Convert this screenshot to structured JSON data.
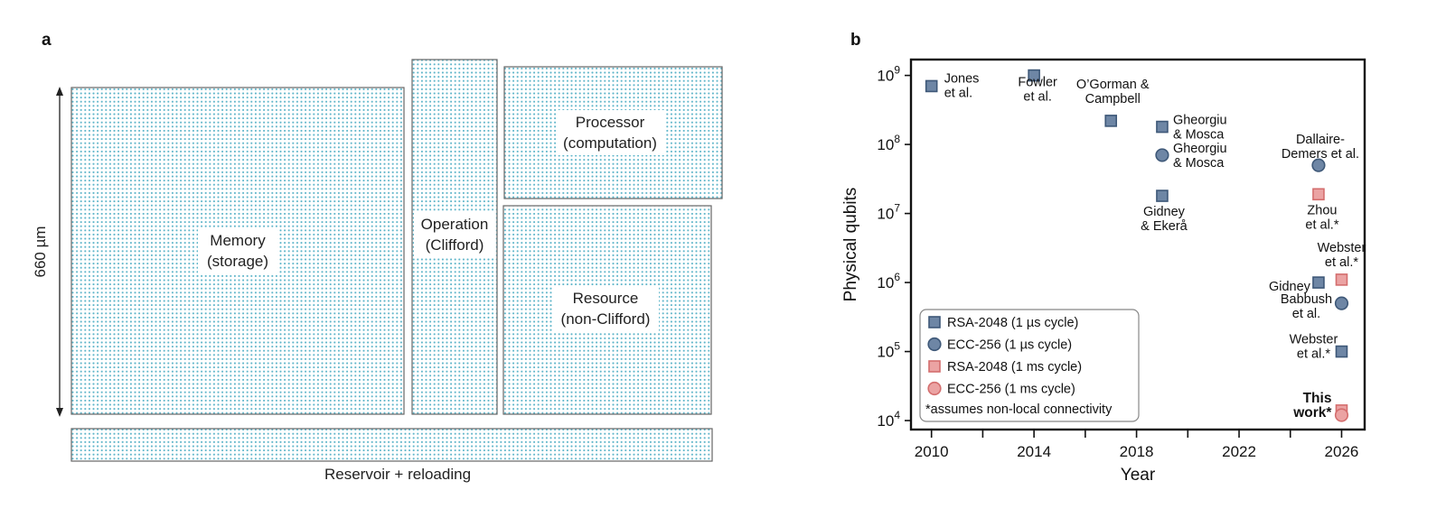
{
  "panel_a": {
    "letter": "a",
    "dimension_label": "660 µm",
    "dot_color": "#5bb3c8",
    "regions": [
      {
        "id": "memory",
        "lines": [
          "Memory",
          "(storage)"
        ]
      },
      {
        "id": "operation",
        "lines": [
          "Operation",
          "(Clifford)"
        ]
      },
      {
        "id": "processor",
        "lines": [
          "Processor",
          "(computation)"
        ]
      },
      {
        "id": "resource",
        "lines": [
          "Resource",
          "(non-Clifford)"
        ]
      },
      {
        "id": "reservoir",
        "lines": []
      }
    ],
    "reservoir_label": "Reservoir + reloading"
  },
  "panel_b": {
    "letter": "b",
    "chart_data": {
      "type": "scatter",
      "xlabel": "Year",
      "ylabel": "Physical qubits",
      "xlim": [
        2009.2,
        2026.9
      ],
      "ylim_exponent": [
        3.87,
        9.23
      ],
      "y_scale": "log",
      "x_ticks": [
        2010,
        2014,
        2018,
        2022,
        2026
      ],
      "x_minor_ticks": [
        2012,
        2016,
        2020,
        2024
      ],
      "y_ticks": [
        {
          "base": "10",
          "exp": "4",
          "value": 10000
        },
        {
          "base": "10",
          "exp": "5",
          "value": 100000
        },
        {
          "base": "10",
          "exp": "6",
          "value": 1000000
        },
        {
          "base": "10",
          "exp": "7",
          "value": 10000000
        },
        {
          "base": "10",
          "exp": "8",
          "value": 100000000
        },
        {
          "base": "10",
          "exp": "9",
          "value": 1000000000
        }
      ],
      "colors": {
        "blue_fill": "#6e86a5",
        "blue_edge": "#3e5878",
        "red_fill": "#eba3a3",
        "red_edge": "#d46e6e"
      },
      "points": [
        {
          "x": 2010,
          "y": 700000000,
          "shape": "square",
          "color": "blue",
          "label": [
            "Jones",
            "et al."
          ],
          "label_bold": false
        },
        {
          "x": 2014,
          "y": 1000000000,
          "shape": "square",
          "color": "blue",
          "label": [
            "Fowler",
            "et al."
          ],
          "label_bold": false
        },
        {
          "x": 2017,
          "y": 220000000,
          "shape": "square",
          "color": "blue",
          "label": [
            "O’Gorman &",
            "Campbell"
          ],
          "label_bold": false
        },
        {
          "x": 2019,
          "y": 180000000,
          "shape": "square",
          "color": "blue",
          "label": [
            "Gheorgiu",
            "& Mosca"
          ],
          "label_bold": false
        },
        {
          "x": 2019,
          "y": 70000000,
          "shape": "circle",
          "color": "blue",
          "label": [
            "Gheorgiu",
            "& Mosca"
          ],
          "label_bold": false
        },
        {
          "x": 2019,
          "y": 18000000,
          "shape": "square",
          "color": "blue",
          "label": [
            "Gidney",
            "& Ekerå"
          ],
          "label_bold": false
        },
        {
          "x": 2025.1,
          "y": 50000000,
          "shape": "circle",
          "color": "blue",
          "label": [
            "Dallaire-",
            "Demers et al."
          ],
          "label_bold": false
        },
        {
          "x": 2025.1,
          "y": 19000000,
          "shape": "square",
          "color": "red",
          "label": [
            "Zhou",
            "et al.*"
          ],
          "label_bold": false
        },
        {
          "x": 2026,
          "y": 1100000,
          "shape": "square",
          "color": "red",
          "label": [
            "Webster",
            "et al.*"
          ],
          "label_bold": false
        },
        {
          "x": 2025.1,
          "y": 1000000,
          "shape": "square",
          "color": "blue",
          "label": [
            "Gidney"
          ],
          "label_bold": false
        },
        {
          "x": 2026,
          "y": 500000,
          "shape": "circle",
          "color": "blue",
          "label": [
            "Babbush",
            "et al."
          ],
          "label_bold": false
        },
        {
          "x": 2026,
          "y": 100000,
          "shape": "square",
          "color": "blue",
          "label": [
            "Webster",
            "et al.*"
          ],
          "label_bold": false
        },
        {
          "x": 2026,
          "y": 14000,
          "shape": "square",
          "color": "red",
          "label": [
            "This",
            "work*"
          ],
          "label_bold": true
        },
        {
          "x": 2026,
          "y": 12000,
          "shape": "circle",
          "color": "red",
          "label": [],
          "label_bold": false
        }
      ],
      "legend": {
        "position": "bottom-left",
        "entries": [
          {
            "shape": "square",
            "color": "blue",
            "label": "RSA-2048 (1 µs cycle)"
          },
          {
            "shape": "circle",
            "color": "blue",
            "label": "ECC-256 (1 µs cycle)"
          },
          {
            "shape": "square",
            "color": "red",
            "label": "RSA-2048 (1 ms cycle)"
          },
          {
            "shape": "circle",
            "color": "red",
            "label": "ECC-256 (1 ms cycle)"
          }
        ],
        "note": "*assumes non-local connectivity"
      }
    }
  }
}
